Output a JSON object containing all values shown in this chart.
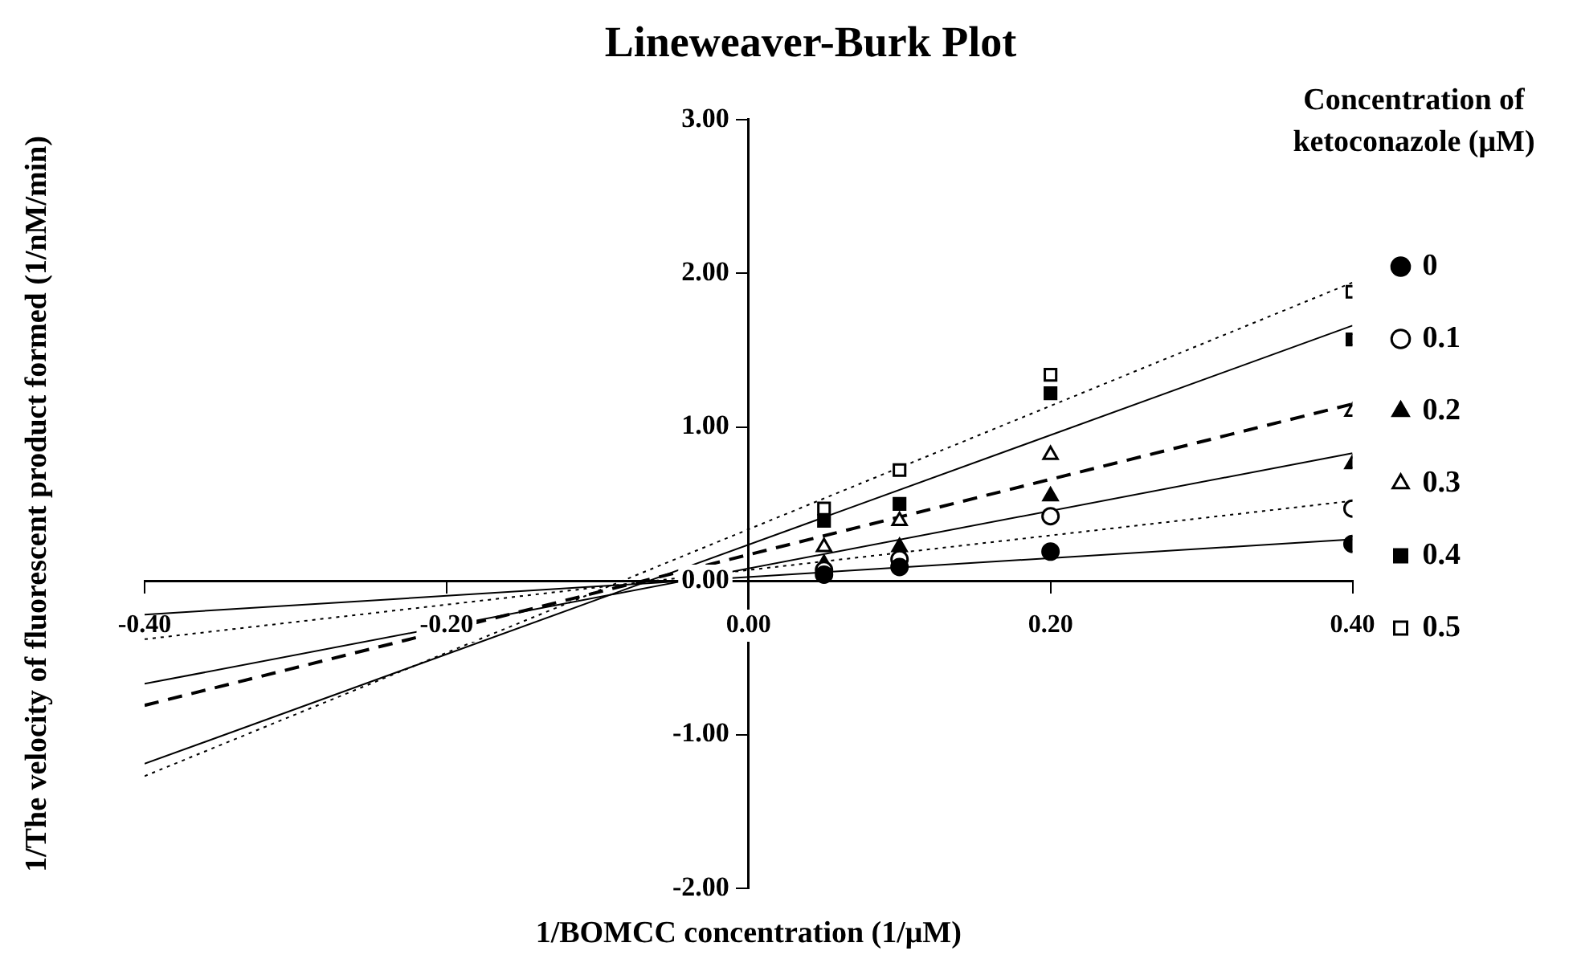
{
  "chart_data": {
    "type": "scatter",
    "title": "Lineweaver-Burk Plot",
    "xlabel": "1/BOMCC concentration (1/μM)",
    "ylabel": "1/The velocity of fluorescent product formed (1/nM/min)",
    "legend_title": "Concentration of ketoconazole (μM)",
    "legend": "right",
    "grid": false,
    "xlim": [
      -0.4,
      0.4
    ],
    "xticks": [
      {
        "value": -0.4,
        "label": "-0.40"
      },
      {
        "value": -0.2,
        "label": "-0.20"
      },
      {
        "value": 0,
        "label": "0.00"
      },
      {
        "value": 0.2,
        "label": "0.20"
      },
      {
        "value": 0.4,
        "label": "0.40"
      }
    ],
    "ylim": [
      -2,
      3
    ],
    "yticks": [
      {
        "value": -2,
        "label": "-2.00"
      },
      {
        "value": -1,
        "label": "-1.00"
      },
      {
        "value": 0,
        "label": "0.00"
      },
      {
        "value": 1,
        "label": "1.00"
      },
      {
        "value": 2,
        "label": "2.00"
      },
      {
        "value": 3,
        "label": "3.00"
      }
    ],
    "series": [
      {
        "name": "0",
        "type": "scatter",
        "color": "#000000",
        "marker": "circle",
        "x": [
          0.05,
          0.1,
          0.2,
          0.4
        ],
        "values": [
          0.04,
          0.09,
          0.19,
          0.24
        ]
      },
      {
        "name": "0.1",
        "type": "scatter",
        "color": "#000000",
        "marker": "circle-open",
        "x": [
          0.05,
          0.1,
          0.2,
          0.4
        ],
        "values": [
          0.07,
          0.14,
          0.42,
          0.47
        ]
      },
      {
        "name": "0.2",
        "type": "scatter",
        "color": "#000000",
        "marker": "triangle",
        "x": [
          0.05,
          0.1,
          0.2,
          0.4
        ],
        "values": [
          0.11,
          0.22,
          0.55,
          0.76
        ]
      },
      {
        "name": "0.3",
        "type": "scatter",
        "color": "#000000",
        "marker": "triangle-open",
        "x": [
          0.05,
          0.1,
          0.2,
          0.4
        ],
        "values": [
          0.22,
          0.39,
          0.82,
          1.1
        ]
      },
      {
        "name": "0.4",
        "type": "scatter",
        "color": "#000000",
        "marker": "square",
        "x": [
          0.05,
          0.1,
          0.2,
          0.4
        ],
        "values": [
          0.39,
          0.5,
          1.22,
          1.57
        ]
      },
      {
        "name": "0.5",
        "type": "scatter",
        "color": "#000000",
        "marker": "square-open",
        "x": [
          0.05,
          0.1,
          0.2,
          0.4
        ],
        "values": [
          0.47,
          0.72,
          1.34,
          1.88
        ]
      },
      {
        "type": "line",
        "color": "#000000",
        "marker": "none",
        "line_style": "solid",
        "x": [
          -0.4,
          0.4
        ],
        "values": [
          -0.22,
          0.27
        ]
      },
      {
        "type": "line",
        "color": "#000000",
        "marker": "none",
        "line_style": "dotted",
        "x": [
          -0.4,
          0.4
        ],
        "values": [
          -0.38,
          0.52
        ]
      },
      {
        "type": "line",
        "color": "#000000",
        "marker": "none",
        "line_style": "solid",
        "x": [
          -0.4,
          0.4
        ],
        "values": [
          -0.67,
          0.83
        ]
      },
      {
        "type": "line",
        "color": "#000000",
        "marker": "none",
        "line_style": "dashed",
        "x": [
          -0.4,
          0.4
        ],
        "values": [
          -0.81,
          1.15
        ]
      },
      {
        "type": "line",
        "color": "#000000",
        "marker": "none",
        "line_style": "solid",
        "x": [
          -0.4,
          0.4
        ],
        "values": [
          -1.19,
          1.66
        ]
      },
      {
        "type": "line",
        "color": "#000000",
        "marker": "none",
        "line_style": "dotted",
        "x": [
          -0.4,
          0.4
        ],
        "values": [
          -1.27,
          1.94
        ]
      }
    ]
  }
}
